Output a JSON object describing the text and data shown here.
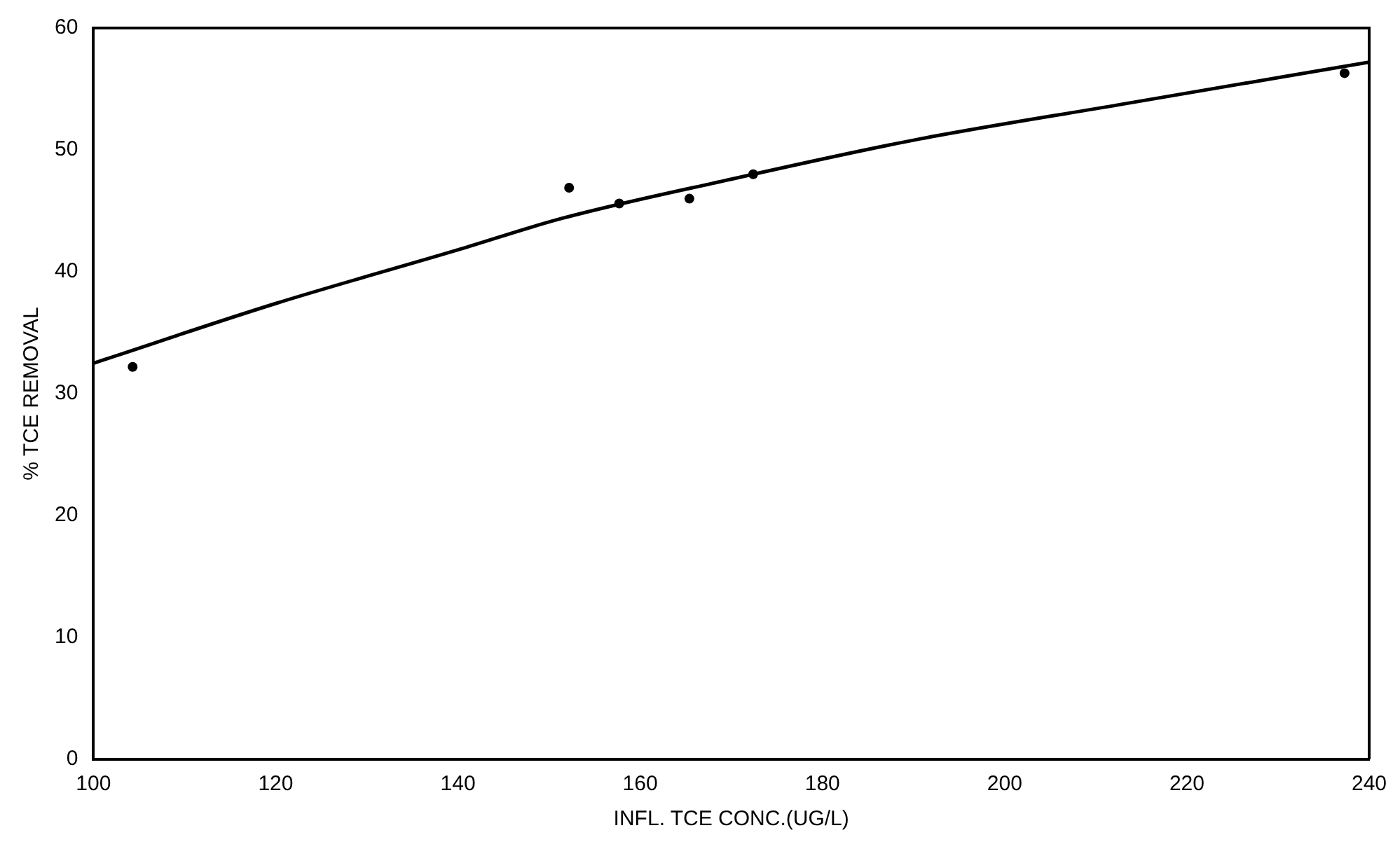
{
  "chart_data": {
    "type": "scatter",
    "xlabel": "INFL. TCE CONC.(UG/L)",
    "ylabel": "% TCE REMOVAL",
    "xlim": [
      100,
      240
    ],
    "xticks": [
      100,
      120,
      140,
      160,
      180,
      200,
      220,
      240
    ],
    "ylim": [
      0,
      60
    ],
    "yticks": [
      0,
      10,
      20,
      30,
      40,
      50,
      60
    ],
    "grid": false,
    "legend": false,
    "series": [
      {
        "type": "scatter",
        "color": "#000000",
        "marker": "circle",
        "x": [
          104.3,
          152.2,
          157.7,
          165.4,
          172.4,
          237.3
        ],
        "values": [
          32.2,
          46.9,
          45.6,
          46.0,
          48.0,
          56.3
        ]
      },
      {
        "type": "line",
        "color": "#000000",
        "marker": "none",
        "line_style": "solid",
        "x": [
          100,
          120,
          140,
          151.5,
          170,
          190,
          212.5,
          240
        ],
        "values": [
          32.5,
          37.4,
          41.8,
          44.4,
          47.6,
          50.8,
          53.7,
          57.2
        ]
      }
    ]
  }
}
